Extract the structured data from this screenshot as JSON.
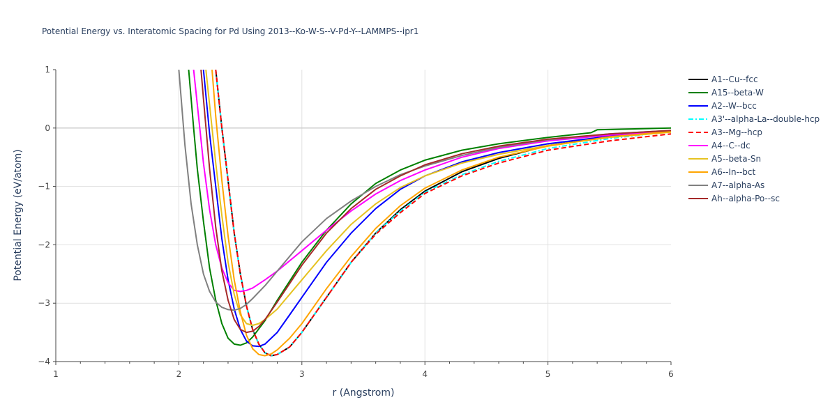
{
  "chart_data": {
    "type": "line",
    "title": "Potential Energy vs. Interatomic Spacing for Pd Using 2013--Ko-W-S--V-Pd-Y--LAMMPS--ipr1",
    "xlabel": "r (Angstrom)",
    "ylabel": "Potential Energy (eV/atom)",
    "xlim": [
      1,
      6
    ],
    "ylim": [
      -4,
      1
    ],
    "xticks": [
      "1",
      "2",
      "3",
      "4",
      "5",
      "6"
    ],
    "yticks": [
      "1",
      "0",
      "−1",
      "−2",
      "−3",
      "−4"
    ],
    "grid": true,
    "legend_position": "top-right-outside",
    "series": [
      {
        "name": "A1--Cu--fcc",
        "color": "#000000",
        "dash": "solid",
        "x": [
          2.3,
          2.35,
          2.4,
          2.45,
          2.5,
          2.55,
          2.6,
          2.65,
          2.7,
          2.75,
          2.8,
          2.9,
          3.0,
          3.2,
          3.4,
          3.6,
          3.8,
          4.0,
          4.3,
          4.6,
          5.0,
          5.5,
          6.0
        ],
        "y": [
          1.0,
          0.0,
          -0.9,
          -1.8,
          -2.5,
          -3.05,
          -3.45,
          -3.7,
          -3.85,
          -3.9,
          -3.88,
          -3.75,
          -3.5,
          -2.9,
          -2.3,
          -1.8,
          -1.4,
          -1.08,
          -0.75,
          -0.52,
          -0.3,
          -0.15,
          -0.05
        ]
      },
      {
        "name": "A15--beta-W",
        "color": "#008000",
        "dash": "solid",
        "x": [
          2.08,
          2.12,
          2.15,
          2.2,
          2.25,
          2.3,
          2.35,
          2.4,
          2.45,
          2.5,
          2.55,
          2.6,
          2.7,
          2.8,
          3.0,
          3.2,
          3.4,
          3.6,
          3.8,
          4.0,
          4.3,
          4.6,
          5.0,
          5.35,
          5.4,
          6.0
        ],
        "y": [
          1.0,
          0.0,
          -0.7,
          -1.6,
          -2.4,
          -2.95,
          -3.35,
          -3.6,
          -3.7,
          -3.72,
          -3.68,
          -3.58,
          -3.3,
          -2.95,
          -2.3,
          -1.75,
          -1.3,
          -0.95,
          -0.72,
          -0.55,
          -0.38,
          -0.27,
          -0.16,
          -0.08,
          -0.03,
          0.0
        ]
      },
      {
        "name": "A2--W--bcc",
        "color": "#0000ff",
        "dash": "solid",
        "x": [
          2.2,
          2.25,
          2.3,
          2.35,
          2.4,
          2.45,
          2.5,
          2.55,
          2.6,
          2.65,
          2.7,
          2.8,
          2.9,
          3.0,
          3.2,
          3.4,
          3.6,
          3.8,
          4.0,
          4.3,
          4.6,
          5.0,
          5.5,
          6.0
        ],
        "y": [
          1.0,
          -0.1,
          -1.0,
          -1.9,
          -2.6,
          -3.1,
          -3.45,
          -3.65,
          -3.73,
          -3.74,
          -3.7,
          -3.5,
          -3.2,
          -2.9,
          -2.3,
          -1.8,
          -1.38,
          -1.05,
          -0.82,
          -0.58,
          -0.42,
          -0.27,
          -0.14,
          -0.06
        ]
      },
      {
        "name": "A3'--alpha-La--double-hcp",
        "color": "#00ffff",
        "dash": "dashdot",
        "x": [
          2.3,
          2.35,
          2.4,
          2.45,
          2.5,
          2.55,
          2.6,
          2.65,
          2.7,
          2.75,
          2.8,
          2.9,
          3.0,
          3.2,
          3.4,
          3.6,
          3.8,
          4.0,
          4.3,
          4.6,
          5.0,
          5.5,
          6.0
        ],
        "y": [
          1.0,
          0.0,
          -0.9,
          -1.8,
          -2.5,
          -3.05,
          -3.45,
          -3.7,
          -3.85,
          -3.9,
          -3.88,
          -3.75,
          -3.5,
          -2.9,
          -2.3,
          -1.8,
          -1.42,
          -1.1,
          -0.8,
          -0.57,
          -0.35,
          -0.18,
          -0.06
        ]
      },
      {
        "name": "A3--Mg--hcp",
        "color": "#ff0000",
        "dash": "dash",
        "x": [
          2.3,
          2.35,
          2.4,
          2.45,
          2.5,
          2.55,
          2.6,
          2.65,
          2.7,
          2.75,
          2.8,
          2.9,
          3.0,
          3.2,
          3.4,
          3.6,
          3.8,
          4.0,
          4.3,
          4.6,
          5.0,
          5.5,
          6.0
        ],
        "y": [
          1.0,
          0.0,
          -0.9,
          -1.8,
          -2.5,
          -3.05,
          -3.45,
          -3.7,
          -3.85,
          -3.9,
          -3.88,
          -3.75,
          -3.5,
          -2.9,
          -2.3,
          -1.82,
          -1.45,
          -1.12,
          -0.82,
          -0.6,
          -0.38,
          -0.22,
          -0.1
        ]
      },
      {
        "name": "A4--C--dc",
        "color": "#ff00ff",
        "dash": "solid",
        "x": [
          2.12,
          2.15,
          2.2,
          2.25,
          2.3,
          2.35,
          2.4,
          2.45,
          2.5,
          2.55,
          2.6,
          2.7,
          2.8,
          3.0,
          3.2,
          3.4,
          3.6,
          3.8,
          4.0,
          4.3,
          4.6,
          5.0,
          5.5,
          6.0
        ],
        "y": [
          1.0,
          0.4,
          -0.6,
          -1.4,
          -2.0,
          -2.4,
          -2.65,
          -2.78,
          -2.8,
          -2.78,
          -2.74,
          -2.6,
          -2.45,
          -2.1,
          -1.75,
          -1.42,
          -1.13,
          -0.9,
          -0.72,
          -0.5,
          -0.35,
          -0.22,
          -0.12,
          -0.05
        ]
      },
      {
        "name": "A5--beta-Sn",
        "color": "#e6c220",
        "dash": "solid",
        "x": [
          2.22,
          2.27,
          2.3,
          2.35,
          2.4,
          2.45,
          2.5,
          2.55,
          2.6,
          2.65,
          2.7,
          2.8,
          3.0,
          3.2,
          3.4,
          3.6,
          3.8,
          4.0,
          4.3,
          4.6,
          5.0,
          5.5,
          6.0
        ],
        "y": [
          1.0,
          0.0,
          -0.6,
          -1.5,
          -2.3,
          -2.85,
          -3.2,
          -3.35,
          -3.38,
          -3.35,
          -3.28,
          -3.1,
          -2.6,
          -2.1,
          -1.65,
          -1.3,
          -1.02,
          -0.82,
          -0.6,
          -0.45,
          -0.3,
          -0.16,
          -0.07
        ]
      },
      {
        "name": "A6--In--bct",
        "color": "#ffa500",
        "dash": "solid",
        "x": [
          2.27,
          2.3,
          2.35,
          2.4,
          2.45,
          2.5,
          2.55,
          2.6,
          2.65,
          2.7,
          2.75,
          2.8,
          2.9,
          3.0,
          3.2,
          3.4,
          3.6,
          3.8,
          4.0,
          4.3,
          4.6,
          5.0,
          5.5,
          6.0
        ],
        "y": [
          1.0,
          0.2,
          -0.9,
          -1.85,
          -2.6,
          -3.15,
          -3.55,
          -3.78,
          -3.88,
          -3.9,
          -3.87,
          -3.8,
          -3.6,
          -3.35,
          -2.75,
          -2.2,
          -1.72,
          -1.33,
          -1.03,
          -0.72,
          -0.5,
          -0.31,
          -0.15,
          -0.06
        ]
      },
      {
        "name": "A7--alpha-As",
        "color": "#808080",
        "dash": "solid",
        "x": [
          2.0,
          2.05,
          2.1,
          2.15,
          2.2,
          2.25,
          2.3,
          2.35,
          2.4,
          2.45,
          2.5,
          2.55,
          2.6,
          2.7,
          2.8,
          3.0,
          3.2,
          3.4,
          3.6,
          3.8,
          4.0,
          4.3,
          4.6,
          5.0,
          5.5,
          6.0
        ],
        "y": [
          1.0,
          -0.3,
          -1.3,
          -2.0,
          -2.5,
          -2.8,
          -2.98,
          -3.07,
          -3.11,
          -3.12,
          -3.09,
          -3.02,
          -2.92,
          -2.7,
          -2.45,
          -1.95,
          -1.55,
          -1.25,
          -1.0,
          -0.8,
          -0.65,
          -0.47,
          -0.33,
          -0.2,
          -0.1,
          -0.04
        ]
      },
      {
        "name": "Ah--alpha-Po--sc",
        "color": "#a52a2a",
        "dash": "solid",
        "x": [
          2.18,
          2.2,
          2.25,
          2.3,
          2.35,
          2.4,
          2.45,
          2.5,
          2.55,
          2.6,
          2.65,
          2.7,
          2.8,
          3.0,
          3.2,
          3.4,
          3.6,
          3.8,
          4.0,
          4.3,
          4.6,
          5.0,
          5.5,
          6.0
        ],
        "y": [
          1.0,
          0.5,
          -0.7,
          -1.7,
          -2.45,
          -2.95,
          -3.28,
          -3.45,
          -3.5,
          -3.48,
          -3.4,
          -3.28,
          -2.98,
          -2.35,
          -1.8,
          -1.38,
          -1.05,
          -0.82,
          -0.63,
          -0.44,
          -0.31,
          -0.19,
          -0.1,
          -0.04
        ]
      }
    ]
  }
}
